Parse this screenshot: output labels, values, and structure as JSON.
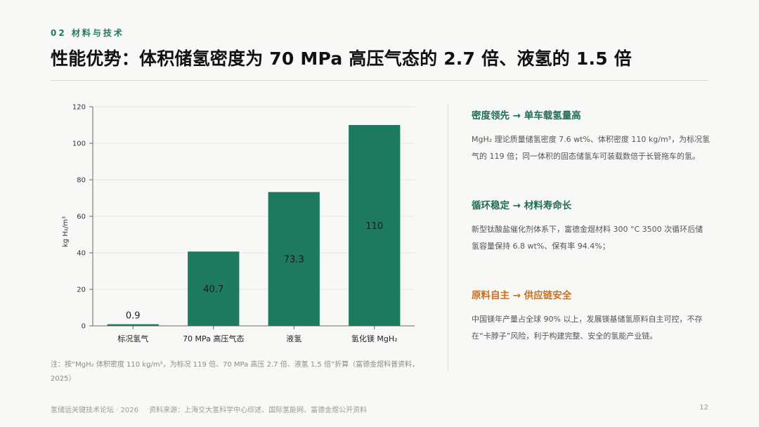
{
  "header": {
    "section": "02 材料与技术",
    "title": "性能优势：体积储氢密度为 70 MPa 高压气态的 2.7 倍、液氢的 1.5 倍"
  },
  "chart_data": {
    "type": "bar",
    "categories": [
      "标况氢气",
      "70 MPa 高压气态",
      "液氢",
      "氢化镁 MgH₂"
    ],
    "values": [
      0.9,
      40.7,
      73.3,
      110
    ],
    "value_labels": [
      "0.9",
      "40.7",
      "73.3",
      "110"
    ],
    "ylabel": "kg H₂/m³",
    "ylim": [
      0,
      120
    ],
    "yticks": [
      0,
      20,
      40,
      60,
      80,
      100,
      120
    ],
    "grid": true,
    "bar_color": "#1d7a5f"
  },
  "note": "注：按“MgH₂ 体积密度 110 kg/m³，为标况 119 倍、70 MPa 高压 2.7 倍、液氢 1.5 倍”折算（富德金煜科普资料，2025）",
  "points": [
    {
      "title": "密度领先 → 单车载氢量高",
      "body": "MgH₂ 理论质量储氢密度 7.6 wt%、体积密度 110 kg/m³，为标况氢气的 119 倍；同一体积的固态储氢车可装载数倍于长管拖车的氢。"
    },
    {
      "title": "循环稳定 → 材料寿命长",
      "body": "新型钛酸盐催化剂体系下，富德金煜材料 300 °C 3500 次循环后储氢容量保持 6.8 wt%、保有率 94.4%；"
    },
    {
      "title": "原料自主 → 供应链安全",
      "body": "中国镁年产量占全球 90% 以上，发展镁基储氢原料自主可控，不存在“卡脖子”风险，利于构建完整、安全的氢能产业链。"
    }
  ],
  "footer": {
    "left": "氢储运关键技术论坛 · 2026",
    "source": "资料来源：上海交大氢科学中心综述、国际氢能网、富德金煜公开资料",
    "page": "12"
  }
}
